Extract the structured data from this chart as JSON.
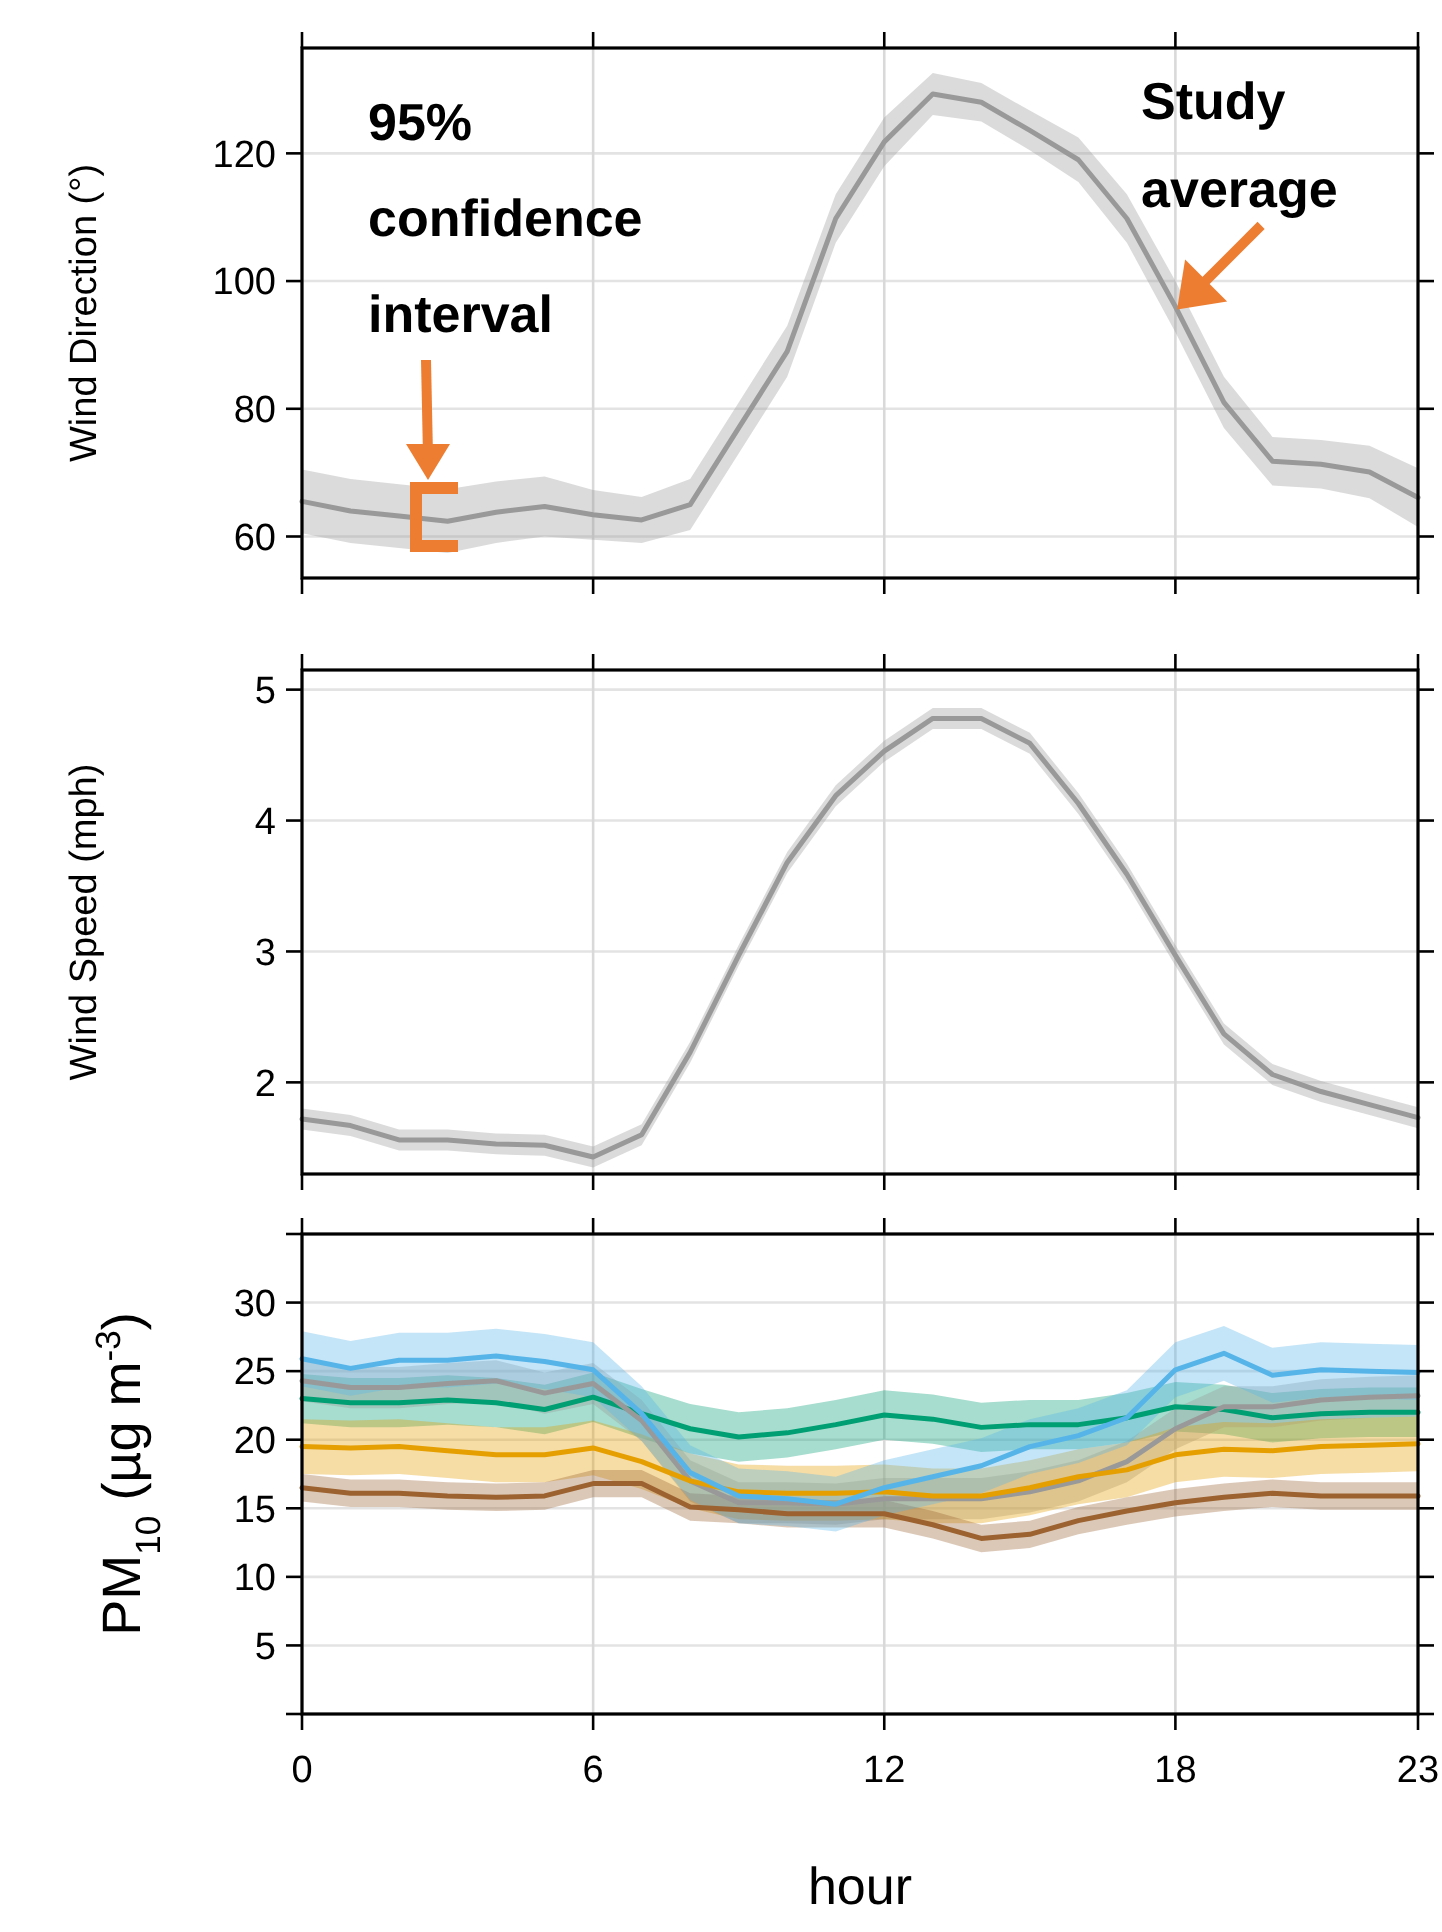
{
  "chart_data": [
    {
      "type": "line",
      "ylabel": "Wind Direction (°)",
      "x": [
        0,
        1,
        2,
        3,
        4,
        5,
        6,
        7,
        8,
        9,
        10,
        11,
        12,
        13,
        14,
        15,
        16,
        17,
        18,
        19,
        20,
        21,
        22,
        23
      ],
      "xlim": [
        0,
        23
      ],
      "xticks": [
        0,
        6,
        12,
        18,
        23
      ],
      "ylim": [
        53.5,
        136.5
      ],
      "yticks": [
        60,
        80,
        100,
        120
      ],
      "grid": true,
      "tick_labels": "y",
      "series": [
        {
          "color": "#999999",
          "values": [
            65.5,
            64,
            63.2,
            62.4,
            63.8,
            64.7,
            63.4,
            62.6,
            65,
            77,
            89,
            109.8,
            121.8,
            129.3,
            128,
            123.6,
            119,
            109.8,
            96,
            81,
            71.8,
            71.3,
            70.1,
            66.1
          ],
          "lower": [
            60.5,
            59,
            58.2,
            57.4,
            59,
            60,
            59.5,
            59,
            61,
            73,
            85,
            106,
            118,
            126,
            125,
            120.5,
            115.5,
            106,
            92,
            77,
            68,
            67.5,
            66,
            61.5
          ],
          "upper": [
            70.5,
            69,
            68.2,
            67.4,
            68.6,
            69.4,
            67.3,
            66.2,
            69,
            81,
            93,
            113.6,
            125.6,
            132.6,
            131,
            126.7,
            122.5,
            113.6,
            100,
            85,
            75.6,
            75.1,
            74.2,
            70.7
          ]
        }
      ],
      "annotations": [
        "95% confidence interval",
        {
          "text": "Study average",
          "x": 18.2,
          "y": 94
        }
      ]
    },
    {
      "type": "line",
      "ylabel": "Wind Speed (mph)",
      "x": [
        0,
        1,
        2,
        3,
        4,
        5,
        6,
        7,
        8,
        9,
        10,
        11,
        12,
        13,
        14,
        15,
        16,
        17,
        18,
        19,
        20,
        21,
        22,
        23
      ],
      "xlim": [
        0,
        23
      ],
      "xticks": [
        0,
        6,
        12,
        18,
        23
      ],
      "ylim": [
        1.3,
        5.15
      ],
      "yticks": [
        2,
        3,
        4,
        5
      ],
      "grid": true,
      "tick_labels": "y",
      "series": [
        {
          "color": "#999999",
          "values": [
            1.72,
            1.67,
            1.56,
            1.56,
            1.53,
            1.52,
            1.43,
            1.6,
            2.23,
            2.97,
            3.68,
            4.19,
            4.53,
            4.78,
            4.78,
            4.59,
            4.13,
            3.59,
            2.97,
            2.37,
            2.06,
            1.93,
            1.83,
            1.73
          ],
          "lower": [
            1.64,
            1.59,
            1.48,
            1.48,
            1.45,
            1.44,
            1.35,
            1.52,
            2.15,
            2.89,
            3.6,
            4.11,
            4.45,
            4.7,
            4.7,
            4.51,
            4.05,
            3.51,
            2.89,
            2.29,
            1.98,
            1.85,
            1.75,
            1.65
          ],
          "upper": [
            1.8,
            1.75,
            1.64,
            1.64,
            1.61,
            1.6,
            1.51,
            1.68,
            2.31,
            3.05,
            3.76,
            4.27,
            4.61,
            4.86,
            4.86,
            4.67,
            4.21,
            3.67,
            3.05,
            2.45,
            2.14,
            2.01,
            1.91,
            1.81
          ]
        }
      ]
    },
    {
      "type": "line",
      "ylabel": "PM$_{10}$ (µg m$^{-3}$)",
      "xlabel": "hour",
      "x": [
        0,
        1,
        2,
        3,
        4,
        5,
        6,
        7,
        8,
        9,
        10,
        11,
        12,
        13,
        14,
        15,
        16,
        17,
        18,
        19,
        20,
        21,
        22,
        23
      ],
      "xlim": [
        0,
        23
      ],
      "xticks": [
        0,
        6,
        12,
        18,
        23
      ],
      "ylim": [
        0,
        35
      ],
      "yticks": [
        {
          "value": 0,
          "label": null
        },
        5,
        10,
        15,
        20,
        25,
        30,
        {
          "value": 35,
          "label": null
        }
      ],
      "grid": true,
      "series": [
        {
          "color": "#56b4e9",
          "values": [
            25.9,
            25.2,
            25.8,
            25.8,
            26.1,
            25.7,
            25.1,
            21.9,
            17.6,
            15.9,
            15.7,
            15.3,
            16.5,
            17.3,
            18.1,
            19.5,
            20.3,
            21.6,
            25.1,
            26.3,
            24.7,
            25.1,
            25,
            24.9
          ],
          "lower": [
            23.9,
            23.2,
            23.8,
            23.8,
            24.1,
            23.7,
            23.1,
            19.9,
            15.6,
            13.9,
            13.7,
            13.3,
            14.5,
            15.3,
            16.1,
            17.5,
            18.3,
            19.6,
            23.1,
            24.3,
            22.7,
            23.1,
            23,
            22.9
          ],
          "upper": [
            27.9,
            27.2,
            27.8,
            27.8,
            28.1,
            27.7,
            27.1,
            23.9,
            19.6,
            17.9,
            17.7,
            17.3,
            18.5,
            19.3,
            20.1,
            21.5,
            22.3,
            23.6,
            27.1,
            28.3,
            26.7,
            27.1,
            27,
            26.9
          ]
        },
        {
          "color": "#009e73",
          "values": [
            23,
            22.7,
            22.7,
            22.9,
            22.7,
            22.2,
            23.1,
            21.9,
            20.8,
            20.2,
            20.5,
            21.1,
            21.8,
            21.5,
            20.9,
            21.1,
            21.1,
            21.6,
            22.4,
            22.2,
            21.6,
            21.9,
            22,
            22
          ],
          "lower": [
            21.2,
            20.9,
            20.9,
            21.1,
            20.9,
            20.4,
            21.3,
            20.1,
            19,
            18.4,
            18.7,
            19.3,
            20,
            19.7,
            19.1,
            19.3,
            19.3,
            19.8,
            20.6,
            20.4,
            19.8,
            20.1,
            20.2,
            20.2
          ],
          "upper": [
            24.8,
            24.5,
            24.5,
            24.7,
            24.5,
            24,
            24.9,
            23.7,
            22.6,
            22,
            22.3,
            22.9,
            23.6,
            23.3,
            22.7,
            22.9,
            22.9,
            23.4,
            24.2,
            24,
            23.4,
            23.7,
            23.8,
            23.8
          ]
        },
        {
          "color": "#999999",
          "values": [
            24.3,
            23.8,
            23.8,
            24.1,
            24.3,
            23.4,
            24.1,
            21.4,
            17,
            15.4,
            15.4,
            15.3,
            15.7,
            15.7,
            15.7,
            16.2,
            17,
            18.4,
            20.8,
            22.4,
            22.4,
            22.9,
            23.1,
            23.2
          ],
          "lower": [
            22.8,
            22.3,
            22.3,
            22.6,
            22.8,
            21.9,
            22.6,
            19.9,
            15.5,
            13.9,
            13.9,
            13.8,
            14.2,
            14.2,
            14.2,
            14.7,
            15.5,
            16.9,
            19.3,
            20.9,
            20.9,
            21.4,
            21.6,
            21.7
          ],
          "upper": [
            25.8,
            25.3,
            25.3,
            25.6,
            25.8,
            24.9,
            25.6,
            22.9,
            18.5,
            16.9,
            16.9,
            16.8,
            17.2,
            17.2,
            17.2,
            17.7,
            18.5,
            19.9,
            22.3,
            23.9,
            23.9,
            24.4,
            24.6,
            24.7
          ]
        },
        {
          "color": "#e69f00",
          "values": [
            19.5,
            19.4,
            19.5,
            19.2,
            18.9,
            18.9,
            19.4,
            18.4,
            17,
            16.2,
            16.1,
            16.1,
            16.2,
            15.9,
            15.9,
            16.5,
            17.3,
            17.8,
            18.9,
            19.3,
            19.2,
            19.5,
            19.6,
            19.7
          ],
          "lower": [
            17.5,
            17.4,
            17.5,
            17.2,
            16.9,
            16.9,
            17.4,
            16.4,
            15,
            14.2,
            14.1,
            14.1,
            14.2,
            13.9,
            13.9,
            14.5,
            15.3,
            15.8,
            16.9,
            17.3,
            17.2,
            17.5,
            17.6,
            17.7
          ],
          "upper": [
            21.5,
            21.4,
            21.5,
            21.2,
            20.9,
            20.9,
            21.4,
            20.4,
            19,
            18.2,
            18.1,
            18.1,
            18.2,
            17.9,
            17.9,
            18.5,
            19.3,
            19.8,
            20.9,
            21.3,
            21.2,
            21.5,
            21.6,
            21.7
          ]
        },
        {
          "color": "#9c6230",
          "values": [
            16.5,
            16.1,
            16.1,
            15.9,
            15.8,
            15.9,
            16.8,
            16.8,
            15.1,
            14.9,
            14.6,
            14.6,
            14.6,
            13.8,
            12.8,
            13.1,
            14.1,
            14.8,
            15.4,
            15.8,
            16.1,
            15.9,
            15.9,
            15.9
          ],
          "lower": [
            15.5,
            15.1,
            15.1,
            14.9,
            14.8,
            14.9,
            15.8,
            15.8,
            14.1,
            13.9,
            13.6,
            13.6,
            13.6,
            12.8,
            11.8,
            12.1,
            13.1,
            13.8,
            14.4,
            14.8,
            15.1,
            14.9,
            14.9,
            14.9
          ],
          "upper": [
            17.5,
            17.1,
            17.1,
            16.9,
            16.8,
            16.9,
            17.8,
            17.8,
            16.1,
            15.9,
            15.6,
            15.6,
            15.6,
            14.8,
            13.8,
            14.1,
            15.1,
            15.8,
            16.4,
            16.8,
            17.1,
            16.9,
            16.9,
            16.9
          ]
        }
      ]
    }
  ]
}
